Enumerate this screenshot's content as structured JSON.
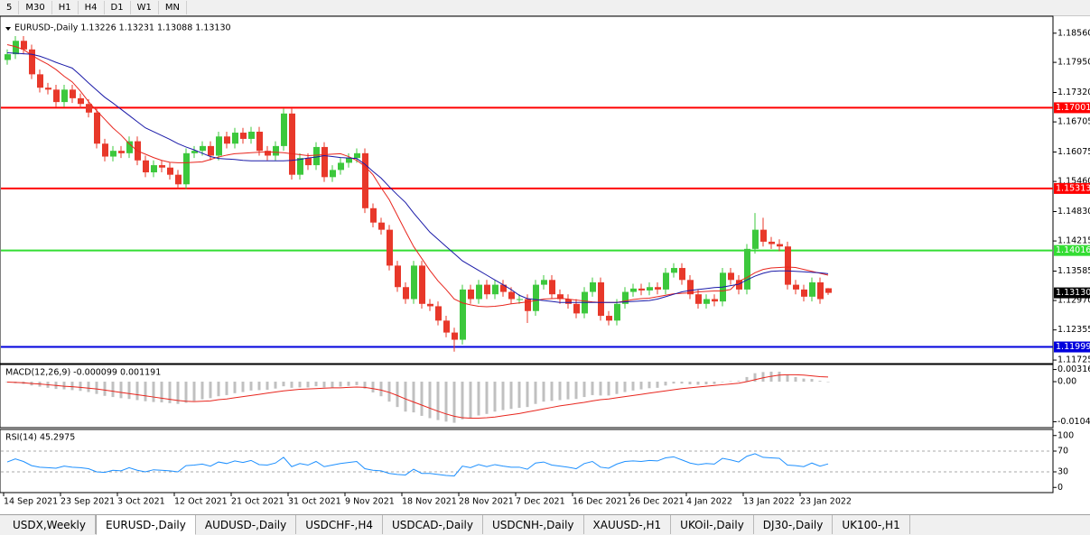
{
  "toolbar": [
    "5",
    "M30",
    "H1",
    "H4",
    "D1",
    "W1",
    "MN"
  ],
  "tabs": [
    {
      "label": "USDX,Weekly",
      "active": false
    },
    {
      "label": "EURUSD-,Daily",
      "active": true
    },
    {
      "label": "AUDUSD-,Daily",
      "active": false
    },
    {
      "label": "USDCHF-,H4",
      "active": false
    },
    {
      "label": "USDCAD-,Daily",
      "active": false
    },
    {
      "label": "USDCNH-,Daily",
      "active": false
    },
    {
      "label": "XAUUSD-,H1",
      "active": false
    },
    {
      "label": "UKOil-,Daily",
      "active": false
    },
    {
      "label": "DJ30-,Daily",
      "active": false
    },
    {
      "label": "UK100-,H1",
      "active": false
    }
  ],
  "chart_data": [
    {
      "type": "candlestick",
      "title": "EURUSD-,Daily  1.13226 1.13231 1.13088 1.13130",
      "categories": [
        "14 Sep 2021",
        null,
        null,
        null,
        null,
        null,
        null,
        "23 Sep 2021",
        null,
        null,
        null,
        null,
        null,
        null,
        "3 Oct 2021",
        null,
        null,
        null,
        null,
        null,
        null,
        "12 Oct 2021",
        null,
        null,
        null,
        null,
        null,
        null,
        "21 Oct 2021",
        null,
        null,
        null,
        null,
        null,
        null,
        "31 Oct 2021",
        null,
        null,
        null,
        null,
        null,
        null,
        "9 Nov 2021",
        null,
        null,
        null,
        null,
        null,
        null,
        "18 Nov 2021",
        null,
        null,
        null,
        null,
        null,
        null,
        "28 Nov 2021",
        null,
        null,
        null,
        null,
        null,
        null,
        "7 Dec 2021",
        null,
        null,
        null,
        null,
        null,
        null,
        "16 Dec 2021",
        null,
        null,
        null,
        null,
        null,
        null,
        "26 Dec 2021",
        null,
        null,
        null,
        null,
        null,
        null,
        "4 Jan 2022",
        null,
        null,
        null,
        null,
        null,
        null,
        "13 Jan 2022",
        null,
        null,
        null,
        null,
        null,
        null,
        "23 Jan 2022",
        null,
        null,
        null
      ],
      "open": [
        1.18,
        1.1812,
        1.184,
        1.1822,
        1.177,
        1.1742,
        1.1738,
        1.1712,
        1.1738,
        1.172,
        1.1708,
        1.169,
        1.1625,
        1.1598,
        1.161,
        1.1605,
        1.163,
        1.159,
        1.1565,
        1.158,
        1.1575,
        1.156,
        1.154,
        1.1605,
        1.161,
        1.162,
        1.16,
        1.164,
        1.1625,
        1.1648,
        1.1635,
        1.165,
        1.161,
        1.16,
        1.162,
        1.1688,
        1.156,
        1.1595,
        1.158,
        1.1618,
        1.1555,
        1.157,
        1.1585,
        1.1595,
        1.1605,
        1.149,
        1.146,
        1.1445,
        1.137,
        1.1325,
        1.13,
        1.137,
        1.129,
        1.1285,
        1.1255,
        1.123,
        1.1215,
        1.132,
        1.13,
        1.133,
        1.131,
        1.133,
        1.1315,
        1.13,
        1.13,
        1.1275,
        1.133,
        1.134,
        1.131,
        1.13,
        1.129,
        1.127,
        1.1315,
        1.1335,
        1.1265,
        1.1255,
        1.129,
        1.1315,
        1.1322,
        1.1318,
        1.1325,
        1.132,
        1.1355,
        1.1365,
        1.134,
        1.131,
        1.129,
        1.13,
        1.1295,
        1.1355,
        1.134,
        1.132,
        1.1405,
        1.1445,
        1.142,
        1.1415,
        1.141,
        1.133,
        1.132,
        1.1305,
        1.1335,
        1.13226
      ],
      "high": [
        1.1822,
        1.185,
        1.185,
        1.1832,
        1.178,
        1.1752,
        1.1748,
        1.1748,
        1.1748,
        1.173,
        1.1718,
        1.17,
        1.1635,
        1.162,
        1.162,
        1.164,
        1.164,
        1.16,
        1.159,
        1.159,
        1.1585,
        1.157,
        1.1615,
        1.162,
        1.163,
        1.163,
        1.165,
        1.165,
        1.1658,
        1.1658,
        1.166,
        1.166,
        1.162,
        1.163,
        1.1698,
        1.1698,
        1.1605,
        1.1605,
        1.1628,
        1.1628,
        1.158,
        1.1595,
        1.1605,
        1.1615,
        1.1615,
        1.15,
        1.147,
        1.1455,
        1.138,
        1.1335,
        1.138,
        1.138,
        1.13,
        1.1295,
        1.1265,
        1.124,
        1.133,
        1.133,
        1.134,
        1.134,
        1.134,
        1.134,
        1.1325,
        1.131,
        1.131,
        1.134,
        1.135,
        1.135,
        1.132,
        1.131,
        1.13,
        1.1325,
        1.1345,
        1.1345,
        1.1275,
        1.13,
        1.1325,
        1.1332,
        1.1332,
        1.1335,
        1.1335,
        1.1365,
        1.1375,
        1.1375,
        1.135,
        1.132,
        1.131,
        1.131,
        1.1365,
        1.1365,
        1.135,
        1.1415,
        1.148,
        1.147,
        1.143,
        1.1425,
        1.142,
        1.134,
        1.133,
        1.1345,
        1.1345,
        1.13231
      ],
      "low": [
        1.179,
        1.1802,
        1.1812,
        1.176,
        1.1732,
        1.1728,
        1.1702,
        1.1702,
        1.171,
        1.1698,
        1.168,
        1.1615,
        1.1588,
        1.1588,
        1.1595,
        1.1595,
        1.158,
        1.1555,
        1.1555,
        1.1565,
        1.155,
        1.153,
        1.153,
        1.1595,
        1.16,
        1.159,
        1.159,
        1.1615,
        1.1615,
        1.1625,
        1.1625,
        1.16,
        1.159,
        1.159,
        1.161,
        1.155,
        1.155,
        1.157,
        1.157,
        1.1545,
        1.1545,
        1.156,
        1.1575,
        1.1585,
        1.148,
        1.145,
        1.1435,
        1.136,
        1.1315,
        1.129,
        1.129,
        1.128,
        1.1275,
        1.1245,
        1.122,
        1.119,
        1.1205,
        1.129,
        1.129,
        1.13,
        1.13,
        1.1305,
        1.129,
        1.129,
        1.125,
        1.1265,
        1.132,
        1.13,
        1.129,
        1.128,
        1.126,
        1.126,
        1.1305,
        1.1255,
        1.1245,
        1.1245,
        1.128,
        1.1305,
        1.1308,
        1.1308,
        1.131,
        1.131,
        1.1345,
        1.133,
        1.13,
        1.128,
        1.128,
        1.1285,
        1.1285,
        1.133,
        1.131,
        1.131,
        1.1395,
        1.141,
        1.1405,
        1.14,
        1.132,
        1.131,
        1.1295,
        1.1295,
        1.129,
        1.13088
      ],
      "close": [
        1.1812,
        1.184,
        1.1822,
        1.177,
        1.1742,
        1.1738,
        1.1712,
        1.1738,
        1.172,
        1.1708,
        1.169,
        1.1625,
        1.1598,
        1.161,
        1.1605,
        1.163,
        1.159,
        1.1565,
        1.158,
        1.1575,
        1.156,
        1.154,
        1.1605,
        1.161,
        1.162,
        1.16,
        1.164,
        1.1625,
        1.1648,
        1.1635,
        1.165,
        1.161,
        1.16,
        1.162,
        1.1688,
        1.156,
        1.1595,
        1.158,
        1.1618,
        1.1555,
        1.157,
        1.1585,
        1.1595,
        1.1605,
        1.149,
        1.146,
        1.1445,
        1.137,
        1.1325,
        1.13,
        1.137,
        1.129,
        1.1285,
        1.1255,
        1.123,
        1.1215,
        1.132,
        1.13,
        1.133,
        1.131,
        1.133,
        1.1315,
        1.13,
        1.13,
        1.1275,
        1.133,
        1.134,
        1.131,
        1.13,
        1.129,
        1.127,
        1.1315,
        1.1335,
        1.1265,
        1.1255,
        1.129,
        1.1315,
        1.1322,
        1.1318,
        1.1325,
        1.132,
        1.1355,
        1.1365,
        1.134,
        1.131,
        1.129,
        1.13,
        1.1295,
        1.1355,
        1.134,
        1.132,
        1.1405,
        1.1445,
        1.142,
        1.1415,
        1.141,
        1.133,
        1.132,
        1.1305,
        1.1335,
        1.13,
        1.1313
      ],
      "up_color": "#3cc83c",
      "down_color": "#e8382a",
      "lines": [
        {
          "color": "#e8261e",
          "values": [
            1.1832,
            1.1828,
            1.1822,
            1.181,
            1.18,
            1.1791,
            1.178,
            1.1766,
            1.1754,
            1.1735,
            1.1713,
            1.1694,
            1.1676,
            1.1658,
            1.1643,
            1.1625,
            1.161,
            1.1603,
            1.1596,
            1.159,
            1.1586,
            1.1585,
            1.1585,
            1.1586,
            1.1587,
            1.1592,
            1.1597,
            1.1601,
            1.1604,
            1.1605,
            1.1606,
            1.1607,
            1.1608,
            1.1607,
            1.1606,
            1.1604,
            1.1602,
            1.16,
            1.1601,
            1.1602,
            1.1603,
            1.1604,
            1.1598,
            1.159,
            1.1578,
            1.156,
            1.1533,
            1.1508,
            1.1475,
            1.1442,
            1.141,
            1.1385,
            1.136,
            1.1338,
            1.132,
            1.13,
            1.1292,
            1.1288,
            1.1285,
            1.1284,
            1.1285,
            1.1287,
            1.129,
            1.1292,
            1.1294,
            1.1297,
            1.13,
            1.1301,
            1.1302,
            1.13,
            1.1298,
            1.1296,
            1.1294,
            1.1293,
            1.1293,
            1.1293,
            1.1296,
            1.1299,
            1.1301,
            1.1302,
            1.1305,
            1.1308,
            1.1311,
            1.1312,
            1.1313,
            1.1315,
            1.1316,
            1.1317,
            1.1317,
            1.132,
            1.1337,
            1.1345,
            1.1355,
            1.1362,
            1.1365,
            1.1366,
            1.1367,
            1.1366,
            1.1362,
            1.1358,
            1.1354,
            1.135
          ]
        },
        {
          "color": "#1a1aa8",
          "values": [
            1.1815,
            1.1814,
            1.1813,
            1.1812,
            1.1808,
            1.1802,
            1.1795,
            1.1789,
            1.1783,
            1.1768,
            1.1752,
            1.1737,
            1.1722,
            1.171,
            1.1697,
            1.1684,
            1.1671,
            1.1658,
            1.165,
            1.1642,
            1.1634,
            1.1625,
            1.1618,
            1.1612,
            1.1605,
            1.1598,
            1.1594,
            1.1593,
            1.1592,
            1.159,
            1.1589,
            1.1589,
            1.1589,
            1.1589,
            1.1589,
            1.159,
            1.1592,
            1.1595,
            1.1597,
            1.16,
            1.1598,
            1.1596,
            1.1595,
            1.1594,
            1.1582,
            1.1567,
            1.1553,
            1.1535,
            1.1518,
            1.1502,
            1.148,
            1.146,
            1.144,
            1.1425,
            1.141,
            1.1395,
            1.138,
            1.137,
            1.136,
            1.135,
            1.134,
            1.133,
            1.132,
            1.1308,
            1.1301,
            1.1299,
            1.1297,
            1.1295,
            1.1293,
            1.1293,
            1.1293,
            1.1293,
            1.1293,
            1.1293,
            1.1293,
            1.1293,
            1.1294,
            1.1295,
            1.1296,
            1.1297,
            1.13,
            1.1305,
            1.131,
            1.1315,
            1.1318,
            1.132,
            1.1322,
            1.1324,
            1.1325,
            1.1328,
            1.1331,
            1.134,
            1.1348,
            1.1354,
            1.1358,
            1.1359,
            1.1359,
            1.1358,
            1.1357,
            1.1356,
            1.1355,
            1.1353
          ]
        }
      ],
      "levels": [
        {
          "value": 1.17001,
          "color": "#ff0000"
        },
        {
          "value": 1.15313,
          "color": "#ff0000"
        },
        {
          "value": 1.14016,
          "color": "#33dd33"
        },
        {
          "value": 1.11999,
          "color": "#0000dd"
        }
      ],
      "price_line": {
        "value": 1.1313,
        "label": "1.13130"
      },
      "ylim": [
        1.1167,
        1.1882
      ],
      "yticks": [
        {
          "value": 1.1856,
          "label": "1.18560"
        },
        {
          "value": 1.1795,
          "label": "1.17950"
        },
        {
          "value": 1.1732,
          "label": "1.17320"
        },
        1.16705,
        1.16075,
        {
          "value": 1.1546,
          "label": "1.15460"
        },
        {
          "value": 1.1483,
          "label": "1.14830"
        },
        1.14215,
        1.13585,
        {
          "value": 1.1297,
          "label": "1.12970"
        },
        1.12355,
        1.11725
      ]
    },
    {
      "type": "macd",
      "title": "MACD(12,26,9) -0.000099 0.001191",
      "hist_color": "#c0c0c0",
      "signal_color": "#e8261e",
      "histogram": [
        -0.0002,
        -0.0004,
        -0.0006,
        -0.001,
        -0.0013,
        -0.0016,
        -0.0019,
        -0.002,
        -0.0022,
        -0.0024,
        -0.0027,
        -0.0032,
        -0.0037,
        -0.004,
        -0.0043,
        -0.0045,
        -0.0048,
        -0.0051,
        -0.0053,
        -0.0054,
        -0.0056,
        -0.0058,
        -0.0055,
        -0.005,
        -0.0046,
        -0.0043,
        -0.0038,
        -0.0035,
        -0.003,
        -0.0027,
        -0.0023,
        -0.0022,
        -0.0021,
        -0.0018,
        -0.0012,
        -0.0016,
        -0.0015,
        -0.0015,
        -0.0012,
        -0.0015,
        -0.0015,
        -0.0013,
        -0.0011,
        -0.0009,
        -0.0018,
        -0.0028,
        -0.0038,
        -0.0052,
        -0.0066,
        -0.0078,
        -0.008,
        -0.0089,
        -0.0095,
        -0.01,
        -0.0104,
        -0.0107,
        -0.0098,
        -0.0094,
        -0.0088,
        -0.0084,
        -0.0078,
        -0.0074,
        -0.0071,
        -0.0068,
        -0.0066,
        -0.0058,
        -0.0052,
        -0.005,
        -0.0048,
        -0.0046,
        -0.0045,
        -0.004,
        -0.0035,
        -0.0036,
        -0.0036,
        -0.0032,
        -0.0027,
        -0.0023,
        -0.002,
        -0.0017,
        -0.0016,
        -0.001,
        -0.0005,
        -0.0005,
        -0.0007,
        -0.0008,
        -0.0007,
        -0.0006,
        -0.0001,
        0.0001,
        0.0002,
        0.0012,
        0.0022,
        0.0025,
        0.0026,
        0.0026,
        0.0018,
        0.0012,
        0.0008,
        0.0007,
        0.0002,
        -0.0001
      ],
      "signal": [
        -0.0001,
        -0.0002,
        -0.0003,
        -0.0005,
        -0.0006,
        -0.0008,
        -0.001,
        -0.0012,
        -0.0013,
        -0.0015,
        -0.0017,
        -0.0019,
        -0.0022,
        -0.0025,
        -0.0028,
        -0.0031,
        -0.0034,
        -0.0037,
        -0.004,
        -0.0043,
        -0.0046,
        -0.0049,
        -0.0051,
        -0.0052,
        -0.0051,
        -0.005,
        -0.0047,
        -0.0045,
        -0.0042,
        -0.0039,
        -0.0036,
        -0.0033,
        -0.003,
        -0.0027,
        -0.0024,
        -0.0022,
        -0.002,
        -0.0019,
        -0.0018,
        -0.0017,
        -0.0016,
        -0.0016,
        -0.0015,
        -0.0014,
        -0.0015,
        -0.0018,
        -0.0022,
        -0.0028,
        -0.0036,
        -0.0045,
        -0.0053,
        -0.0061,
        -0.0069,
        -0.0077,
        -0.0084,
        -0.009,
        -0.0094,
        -0.0095,
        -0.0095,
        -0.0094,
        -0.0092,
        -0.0089,
        -0.0086,
        -0.0083,
        -0.0079,
        -0.0075,
        -0.0071,
        -0.0067,
        -0.0063,
        -0.006,
        -0.0057,
        -0.0054,
        -0.005,
        -0.0047,
        -0.0045,
        -0.0042,
        -0.0039,
        -0.0036,
        -0.0033,
        -0.003,
        -0.0027,
        -0.0024,
        -0.0021,
        -0.0018,
        -0.0016,
        -0.0014,
        -0.0012,
        -0.001,
        -0.0008,
        -0.0006,
        -0.0004,
        0.0,
        0.0005,
        0.001,
        0.0014,
        0.0017,
        0.0018,
        0.0018,
        0.0017,
        0.0015,
        0.0013,
        0.0012
      ],
      "ylim": [
        -0.0115,
        0.004
      ],
      "yticks": [
        0.003165,
        {
          "value": 0,
          "label": "0.00"
        },
        -0.01043
      ]
    },
    {
      "type": "line",
      "title": "RSI(14) 45.2975",
      "color": "#1e90ff",
      "values": [
        49,
        55,
        50,
        42,
        39,
        38,
        37,
        41,
        39,
        38,
        36,
        30,
        29,
        33,
        32,
        38,
        33,
        30,
        34,
        33,
        32,
        30,
        42,
        43,
        45,
        41,
        49,
        46,
        51,
        48,
        52,
        44,
        43,
        47,
        58,
        40,
        46,
        43,
        50,
        40,
        43,
        46,
        48,
        50,
        36,
        33,
        32,
        27,
        25,
        24,
        35,
        27,
        27,
        25,
        23,
        22,
        41,
        38,
        44,
        40,
        44,
        41,
        39,
        39,
        35,
        47,
        49,
        43,
        41,
        39,
        36,
        46,
        50,
        39,
        37,
        45,
        50,
        51,
        50,
        52,
        51,
        57,
        59,
        53,
        47,
        44,
        46,
        45,
        56,
        53,
        49,
        60,
        65,
        58,
        57,
        56,
        43,
        42,
        40,
        47,
        41,
        45.2975
      ],
      "ylim": [
        -10,
        110
      ],
      "yticks": [
        100,
        70,
        30,
        0
      ],
      "dashed_levels": [
        70,
        30
      ]
    }
  ]
}
